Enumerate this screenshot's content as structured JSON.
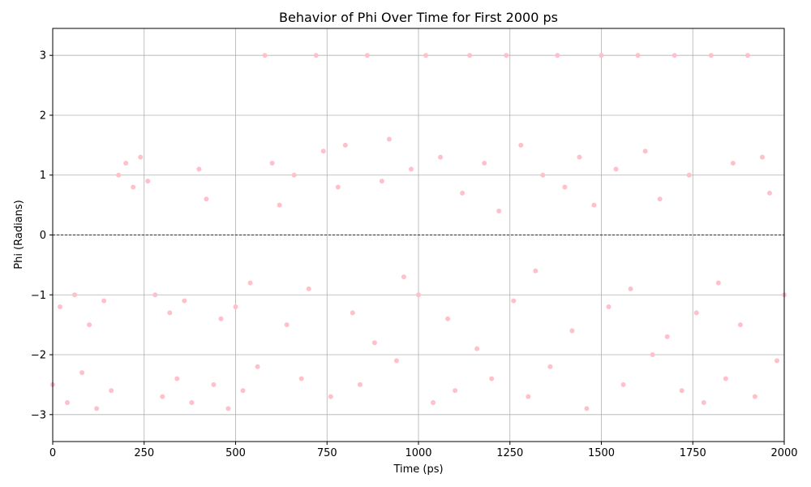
{
  "chart_data": {
    "type": "scatter",
    "title": "Behavior of Phi Over Time for First 2000 ps",
    "xlabel": "Time (ps)",
    "ylabel": "Phi (Radians)",
    "xlim": [
      0,
      2000
    ],
    "ylim": [
      -3.45,
      3.45
    ],
    "x_ticks": [
      0,
      250,
      500,
      750,
      1000,
      1250,
      1500,
      1750,
      2000
    ],
    "x_tick_labels": [
      "0",
      "250",
      "500",
      "750",
      "1000",
      "1250",
      "1500",
      "1750",
      "2000"
    ],
    "y_ticks": [
      -3,
      -2,
      -1,
      0,
      1,
      2,
      3
    ],
    "y_tick_labels": [
      "−3",
      "−2",
      "−1",
      "0",
      "1",
      "2",
      "3"
    ],
    "grid": true,
    "reference_line_y": 0,
    "marker_color": "#ffc0cb",
    "series": [
      {
        "x": [
          0,
          20,
          40,
          60,
          80,
          100,
          120,
          140,
          160,
          180,
          200,
          220,
          240,
          260,
          280,
          300,
          320,
          340,
          360,
          380,
          400,
          420,
          440,
          460,
          480,
          500,
          520,
          540,
          560,
          580,
          600,
          620,
          640,
          660,
          680,
          700,
          720,
          740,
          760,
          780,
          800,
          820,
          840,
          860,
          880,
          900,
          920,
          940,
          960,
          980,
          1000,
          1020,
          1040,
          1060,
          1080,
          1100,
          1120,
          1140,
          1160,
          1180,
          1200,
          1220,
          1240,
          1260,
          1280,
          1300,
          1320,
          1340,
          1360,
          1380,
          1400,
          1420,
          1440,
          1460,
          1480,
          1500,
          1520,
          1540,
          1560,
          1580,
          1600,
          1620,
          1640,
          1660,
          1680,
          1700,
          1720,
          1740,
          1760,
          1780,
          1800,
          1820,
          1840,
          1860,
          1880,
          1900,
          1920,
          1940,
          1960,
          1980,
          2000
        ],
        "y": [
          -2.5,
          -1.2,
          -2.8,
          -1.0,
          -2.3,
          -1.5,
          -2.9,
          -1.1,
          -2.6,
          1.0,
          1.2,
          0.8,
          1.3,
          0.9,
          -1.0,
          -2.7,
          -1.3,
          -2.4,
          -1.1,
          -2.8,
          1.1,
          0.6,
          -2.5,
          -1.4,
          -2.9,
          -1.2,
          -2.6,
          -0.8,
          -2.2,
          3.0,
          1.2,
          0.5,
          -1.5,
          1.0,
          -2.4,
          -0.9,
          3.0,
          1.4,
          -2.7,
          0.8,
          1.5,
          -1.3,
          -2.5,
          3.0,
          -1.8,
          0.9,
          1.6,
          -2.1,
          -0.7,
          1.1,
          -1.0,
          3.0,
          -2.8,
          1.3,
          -1.4,
          -2.6,
          0.7,
          3.0,
          -1.9,
          1.2,
          -2.4,
          0.4,
          3.0,
          -1.1,
          1.5,
          -2.7,
          -0.6,
          1.0,
          -2.2,
          3.0,
          0.8,
          -1.6,
          1.3,
          -2.9,
          0.5,
          3.0,
          -1.2,
          1.1,
          -2.5,
          -0.9,
          3.0,
          1.4,
          -2.0,
          0.6,
          -1.7,
          3.0,
          -2.6,
          1.0,
          -1.3,
          -2.8,
          3.0,
          -0.8,
          -2.4,
          1.2,
          -1.5,
          3.0,
          -2.7,
          1.3,
          0.7,
          -2.1,
          -1.0
        ]
      }
    ]
  }
}
